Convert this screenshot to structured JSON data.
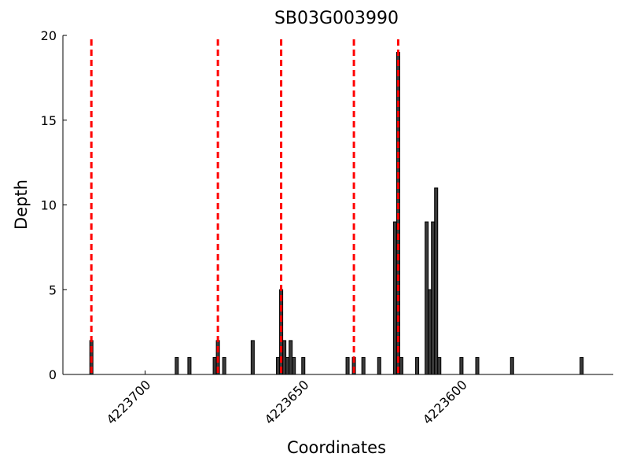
{
  "chart_data": {
    "type": "bar",
    "title": "SB03G003990",
    "x_label": "Coordinates",
    "y_label": "Depth",
    "x": [
      4223717,
      4223690,
      4223686,
      4223678,
      4223677,
      4223675,
      4223666,
      4223658,
      4223657,
      4223656,
      4223655,
      4223654,
      4223653,
      4223650,
      4223636,
      4223634,
      4223631,
      4223626,
      4223621,
      4223620,
      4223619,
      4223614,
      4223611,
      4223610,
      4223609,
      4223608,
      4223607,
      4223600,
      4223595,
      4223584,
      4223562
    ],
    "values": [
      2,
      1,
      1,
      1,
      2,
      1,
      2,
      1,
      5,
      2,
      1,
      2,
      1,
      1,
      1,
      1,
      1,
      1,
      9,
      19,
      1,
      1,
      9,
      5,
      9,
      11,
      1,
      1,
      1,
      1,
      1
    ],
    "color": "#3a3a3a",
    "vlines": [
      4223717,
      4223677,
      4223657,
      4223634,
      4223620
    ],
    "vline_color": "#ff0000",
    "xlim": [
      4223726,
      4223552
    ],
    "xticks": [
      4223700,
      4223650,
      4223600
    ],
    "ylim": [
      0,
      20
    ],
    "yticks": [
      0,
      5,
      10,
      15,
      20
    ]
  }
}
